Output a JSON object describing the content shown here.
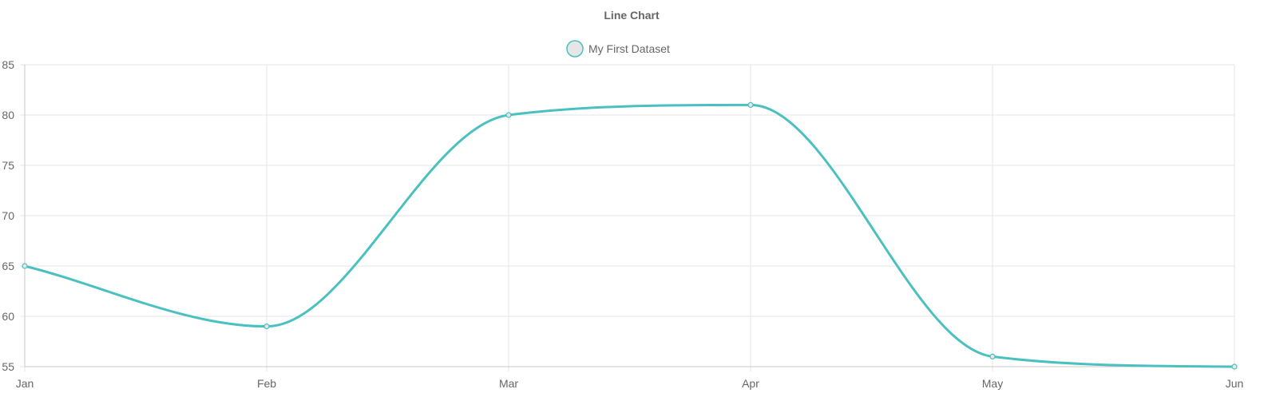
{
  "chart_data": {
    "type": "line",
    "title": "Line Chart",
    "categories": [
      "Jan",
      "Feb",
      "Mar",
      "Apr",
      "May",
      "Jun"
    ],
    "series": [
      {
        "name": "My First Dataset",
        "values": [
          65,
          59,
          80,
          81,
          56,
          55
        ],
        "color": "#4bc0c0",
        "point_fill": "#e6e6e6"
      }
    ],
    "xlabel": "",
    "ylabel": "",
    "ylim": [
      55,
      85
    ],
    "yticks": [
      55,
      60,
      65,
      70,
      75,
      80,
      85
    ],
    "grid": true,
    "legend_position": "top",
    "curve": "smooth",
    "colors": {
      "grid": "#e5e5e5",
      "axis": "#c8c8c8",
      "title": "#666666",
      "tick_label": "#666666"
    }
  }
}
